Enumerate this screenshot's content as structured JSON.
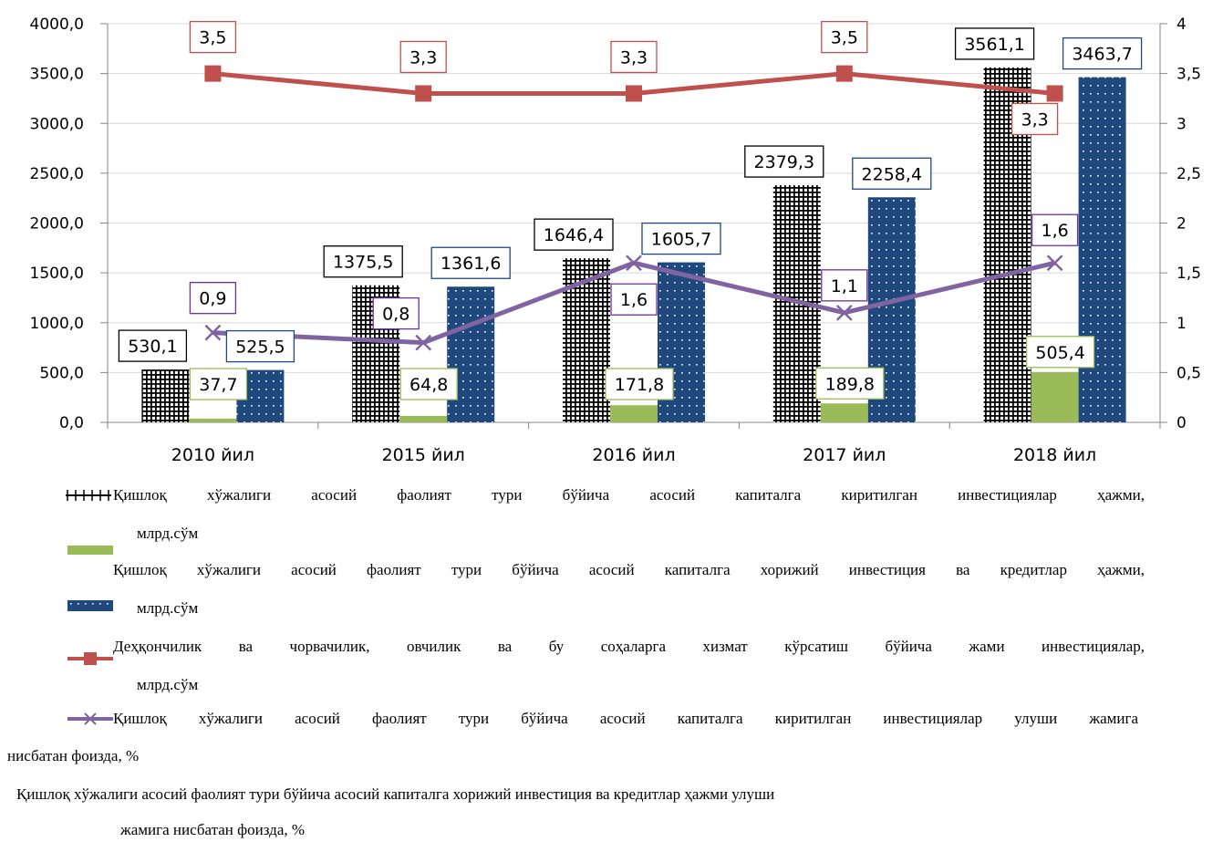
{
  "chart_data": {
    "type": "bar",
    "categories": [
      "2010 йил",
      "2015 йил",
      "2016 йил",
      "2017 йил",
      "2018 йил"
    ],
    "y_left": {
      "ylim": [
        0,
        4000
      ],
      "ticks": [
        "0,0",
        "500,0",
        "1000,0",
        "1500,0",
        "2000,0",
        "2500,0",
        "3000,0",
        "3500,0",
        "4000,0"
      ]
    },
    "y_right": {
      "ylim": [
        0,
        4
      ],
      "ticks": [
        "0",
        "0,5",
        "1",
        "1,5",
        "2",
        "2,5",
        "3",
        "3,5",
        "4"
      ]
    },
    "series": [
      {
        "name": "Қишлоқ хўжалиги асосий фаолият тури бўйича асосий капиталга киритилган инвестициялар ҳажми, млрд.сўм",
        "kind": "bar",
        "pattern": "grid",
        "color": "#000000",
        "values": [
          530.1,
          1375.5,
          1646.4,
          2379.3,
          3561.1
        ],
        "labels": [
          "530,1",
          "1375,5",
          "1646,4",
          "2379,3",
          "3561,1"
        ]
      },
      {
        "name": "Қишлоқ хўжалиги асосий фаолият тури бўйича асосий капиталга хорижий инвестиция ва кредитлар ҳажми, млрд.сўм",
        "kind": "bar",
        "pattern": "solid",
        "color": "#9bbb59",
        "values": [
          37.7,
          64.8,
          171.8,
          189.8,
          505.4
        ],
        "labels": [
          "37,7",
          "64,8",
          "171,8",
          "189,8",
          "505,4"
        ]
      },
      {
        "name": "Деҳқончилик ва чорвачилик, овчилик ва бу соҳаларга хизмат кўрсатиш бўйича жами инвестициялар, млрд.сўм",
        "kind": "bar",
        "pattern": "dotted",
        "color": "#1f497d",
        "values": [
          525.5,
          1361.6,
          1605.7,
          2258.4,
          3463.7
        ],
        "labels": [
          "525,5",
          "1361,6",
          "1605,7",
          "2258,4",
          "3463,7"
        ]
      },
      {
        "name": "Қишлоқ хўжалиги асосий фаолият тури бўйича асосий капиталга киритилган инвестициялар улуши жамига нисбатан фоизда, %",
        "kind": "line",
        "marker": "square",
        "axis": "right",
        "color": "#c0504d",
        "values": [
          3.5,
          3.3,
          3.3,
          3.5,
          3.3
        ],
        "labels": [
          "3,5",
          "3,3",
          "3,3",
          "3,5",
          "3,3"
        ]
      },
      {
        "name": "Қишлоқ хўжалиги асосий фаолият тури бўйича асосий капиталга хорижий инвестиция ва кредитлар ҳажми улуши жамига нисбатан фоизда, %",
        "kind": "line",
        "marker": "x",
        "axis": "right",
        "color": "#8064a2",
        "values": [
          0.9,
          0.8,
          1.6,
          1.1,
          1.6
        ],
        "labels": [
          "0,9",
          "0,8",
          "1,6",
          "1,1",
          "1,6"
        ]
      }
    ],
    "grid": true
  },
  "legend": {
    "item1_line1": "Қишлоқ хўжалиги асосий фаолият тури бўйича асосий капиталга киритилган инвестициялар ҳажми,",
    "item1_line2": "млрд.сўм",
    "item2_line1": "Қишлоқ хўжалиги асосий фаолият тури бўйича асосий капиталга хорижий инвестиция ва кредитлар ҳажми,",
    "item2_line2": "млрд.сўм",
    "item3_line1": "Деҳқончилик ва чорвачилик, овчилик ва бу соҳаларга хизмат кўрсатиш бўйича жами инвестициялар,",
    "item3_line2": "млрд.сўм",
    "item4_line1": "Қишлоқ хўжалиги асосий фаолият тури бўйича асосий капиталга киритилган инвестициялар улуши жамига",
    "item4_line2": "нисбатан фоизда, %",
    "item5_line1": "Қишлоқ хўжалиги асосий фаолият тури бўйича асосий капиталга хорижий инвестиция ва кредитлар ҳажми улуши",
    "item5_line2": "жамига нисбатан фоизда, %"
  }
}
